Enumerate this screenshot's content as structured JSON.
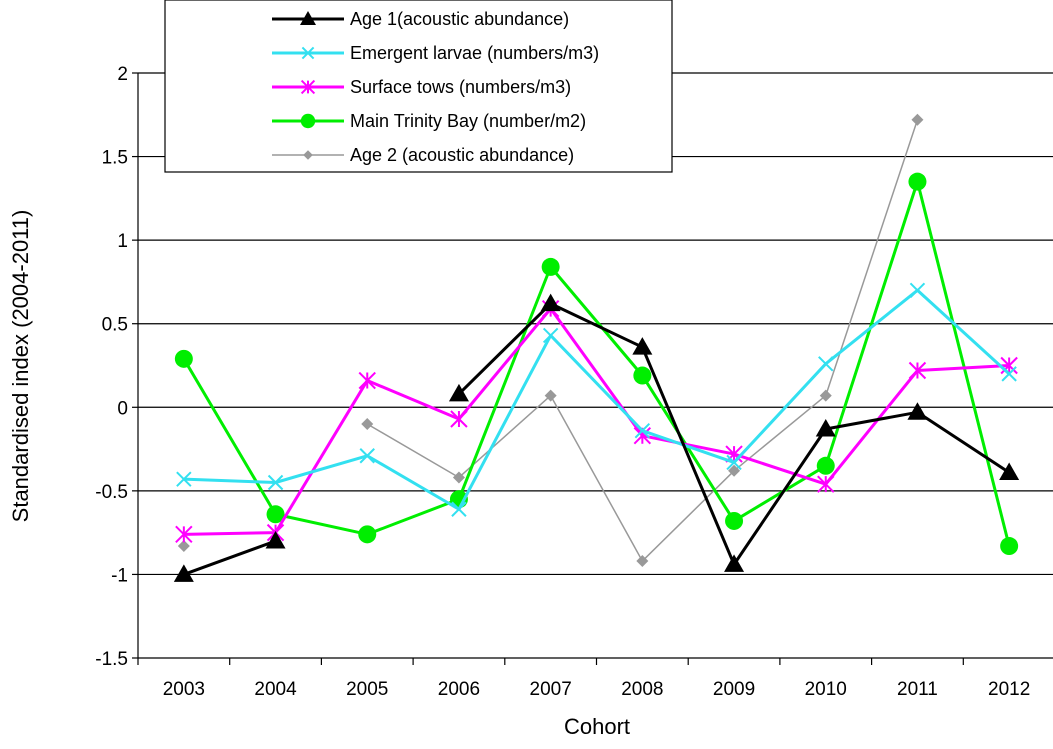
{
  "chart_data": {
    "type": "line",
    "xlabel": "Cohort",
    "ylabel": "Standardised index (2004-2011)",
    "categories": [
      "2003",
      "2004",
      "2005",
      "2006",
      "2007",
      "2008",
      "2009",
      "2010",
      "2011",
      "2012"
    ],
    "ylim": [
      -1.5,
      2
    ],
    "yticks": [
      -1.5,
      -1,
      -0.5,
      0,
      0.5,
      1,
      1.5,
      2
    ],
    "grid": "horizontal",
    "legend_position": "top-left",
    "series": [
      {
        "name": "Age 1(acoustic abundance)",
        "color": "#000000",
        "marker": "triangle",
        "values": [
          -1.0,
          -0.8,
          null,
          0.08,
          0.62,
          0.36,
          -0.94,
          -0.13,
          -0.03,
          -0.39
        ]
      },
      {
        "name": "Emergent larvae (numbers/m3)",
        "color": "#33e0f0",
        "marker": "x",
        "values": [
          -0.43,
          -0.45,
          -0.29,
          -0.61,
          0.43,
          -0.14,
          -0.33,
          0.26,
          0.7,
          0.2
        ]
      },
      {
        "name": "Surface tows (numbers/m3)",
        "color": "#ff00ff",
        "marker": "star",
        "values": [
          -0.76,
          -0.75,
          0.16,
          -0.07,
          0.59,
          -0.17,
          -0.28,
          -0.46,
          0.22,
          0.25
        ]
      },
      {
        "name": "Main Trinity Bay (number/m2)",
        "color": "#00ee00",
        "marker": "circle",
        "values": [
          0.29,
          -0.64,
          -0.76,
          -0.55,
          0.84,
          0.19,
          -0.68,
          -0.35,
          1.35,
          -0.83
        ]
      },
      {
        "name": "Age 2 (acoustic abundance)",
        "color": "#999999",
        "marker": "diamond",
        "values": [
          -0.83,
          null,
          -0.1,
          -0.42,
          0.07,
          -0.92,
          -0.38,
          0.07,
          1.72,
          null
        ]
      }
    ]
  }
}
